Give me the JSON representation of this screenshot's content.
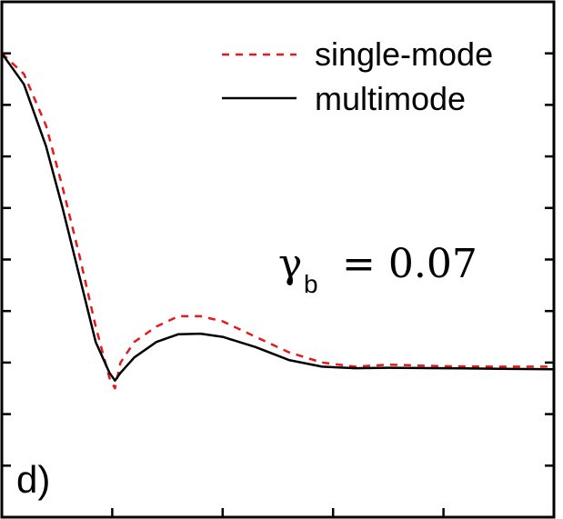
{
  "chart_data": {
    "type": "line",
    "panel_label": "d)",
    "annotation": {
      "symbol": "γ",
      "subscript": "b",
      "equals_text": "= 0.07"
    },
    "xlim": [
      0,
      10
    ],
    "ylim": [
      0,
      1
    ],
    "legend_position": "top-right",
    "grid": false,
    "series": [
      {
        "name": "single-mode",
        "color": "#e41a1c",
        "style": "dashed",
        "x": [
          0.0,
          0.4,
          0.8,
          1.1,
          1.4,
          1.7,
          1.95,
          2.05,
          2.15,
          2.4,
          2.8,
          3.2,
          3.6,
          4.0,
          4.6,
          5.2,
          5.8,
          6.4,
          7.0,
          8.0,
          9.0,
          10.0
        ],
        "y": [
          0.9,
          0.86,
          0.76,
          0.64,
          0.51,
          0.37,
          0.27,
          0.25,
          0.3,
          0.34,
          0.37,
          0.39,
          0.39,
          0.38,
          0.35,
          0.32,
          0.3,
          0.292,
          0.296,
          0.293,
          0.292,
          0.292
        ]
      },
      {
        "name": "multimode",
        "color": "#000000",
        "style": "solid",
        "x": [
          0.0,
          0.4,
          0.8,
          1.1,
          1.4,
          1.7,
          1.95,
          2.05,
          2.15,
          2.4,
          2.8,
          3.2,
          3.6,
          4.0,
          4.6,
          5.2,
          5.8,
          6.4,
          7.0,
          8.0,
          9.0,
          10.0
        ],
        "y": [
          0.9,
          0.84,
          0.72,
          0.6,
          0.47,
          0.34,
          0.28,
          0.265,
          0.28,
          0.31,
          0.34,
          0.355,
          0.356,
          0.35,
          0.33,
          0.305,
          0.292,
          0.289,
          0.29,
          0.289,
          0.288,
          0.287
        ]
      }
    ]
  }
}
